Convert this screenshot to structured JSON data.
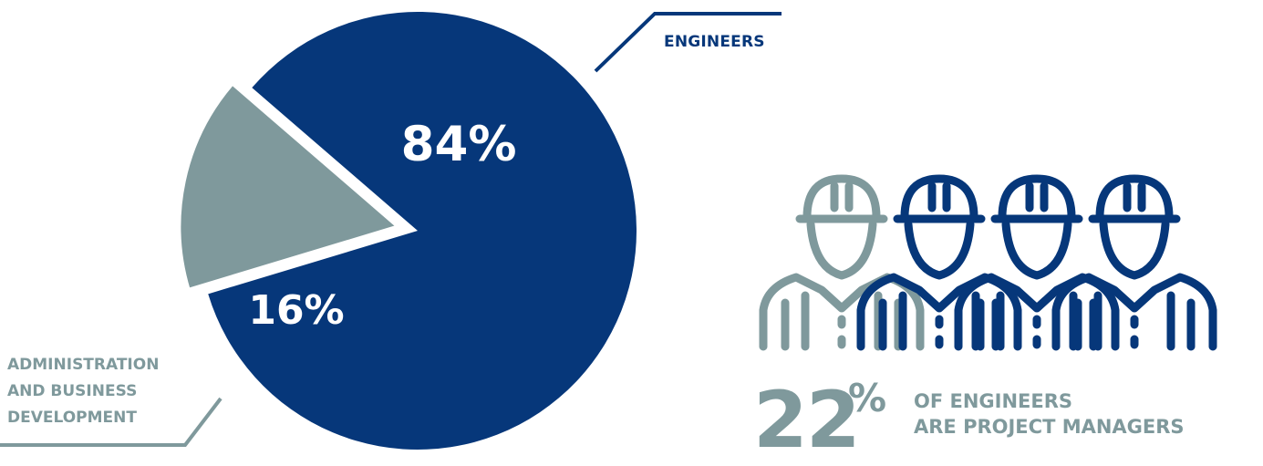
{
  "chart_data": {
    "type": "pie",
    "title": "",
    "slices": [
      {
        "label": "ENGINEERS",
        "value": 84,
        "value_label": "84%",
        "color": "#06377a"
      },
      {
        "label_lines": [
          "ADMINISTRATION",
          "AND BUSINESS",
          "DEVELOPMENT"
        ],
        "value": 16,
        "value_label": "16%",
        "color": "#7f999c"
      }
    ],
    "slice_style": "exploded",
    "leader_line_color_engineers": "#06377a",
    "leader_line_color_admin": "#7f999c"
  },
  "stat": {
    "number": "22",
    "percent_sign": "%",
    "line1": "OF ENGINEERS",
    "line2": "ARE PROJECT MANAGERS",
    "icon": "engineer-with-hard-hat-icon",
    "icon_count": 4,
    "highlighted_count": 1,
    "highlight_color": "#7f999c",
    "base_color": "#06377a"
  }
}
